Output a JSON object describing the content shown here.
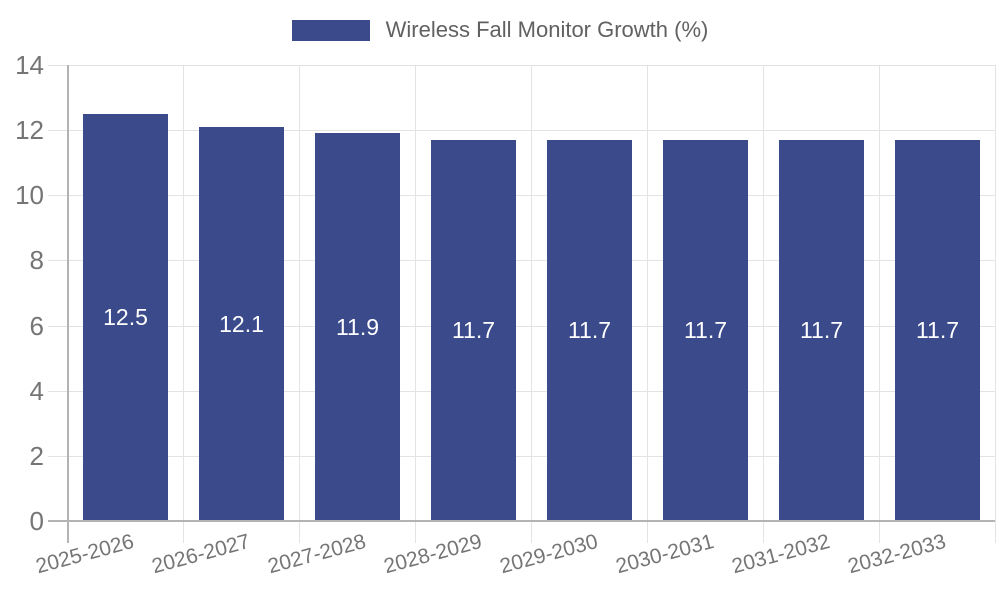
{
  "legend": {
    "label": "Wireless Fall Monitor Growth (%)"
  },
  "chart_data": {
    "type": "bar",
    "title": "",
    "series_name": "Wireless Fall Monitor Growth (%)",
    "categories": [
      "2025-2026",
      "2026-2027",
      "2027-2028",
      "2028-2029",
      "2029-2030",
      "2030-2031",
      "2031-2032",
      "2032-2033"
    ],
    "values": [
      12.5,
      12.1,
      11.9,
      11.7,
      11.7,
      11.7,
      11.7,
      11.7
    ],
    "bar_value_labels": [
      "12.5",
      "12.1",
      "11.9",
      "11.7",
      "11.7",
      "11.7",
      "11.7",
      "11.7"
    ],
    "xlabel": "",
    "ylabel": "",
    "ylim": [
      0,
      14
    ],
    "yticks": [
      0,
      2,
      4,
      6,
      8,
      10,
      12,
      14
    ],
    "grid": true,
    "x_label_rotation_deg": -15,
    "legend_position": "top-center",
    "colors": {
      "bar": "#3A4A8B",
      "bar_label": "#FFFFFF",
      "gridline": "#E3E3E3",
      "axis_line": "#B3B3B3",
      "tick_label": "#757575",
      "legend_text": "#616161",
      "background": "#FFFFFF"
    }
  }
}
